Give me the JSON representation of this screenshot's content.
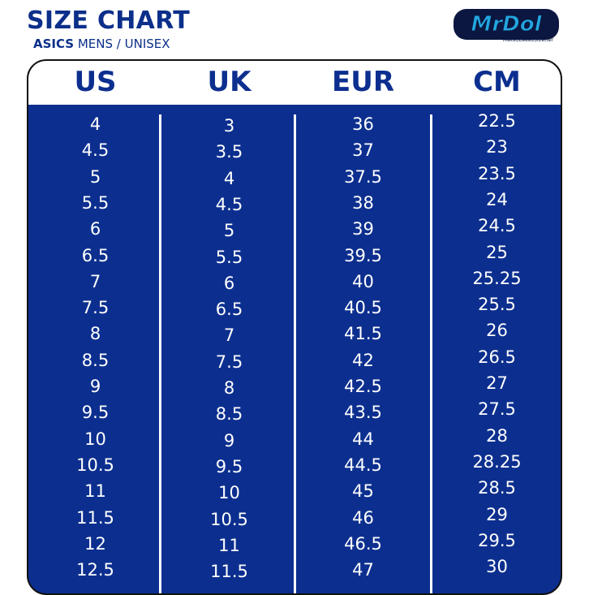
{
  "header": {
    "title": "SIZE CHART",
    "brand": "ASICS",
    "subtitle_rest": " MENS / UNISEX",
    "logo_text": "MrDol",
    "logo_tagline": "Makeubeeeoolbetter"
  },
  "colors": {
    "navy": "#0c2f8f",
    "title_blue": "#0b2f8a",
    "logo_cyan": "#22a7e0"
  },
  "columns": [
    {
      "heading": "US",
      "values": [
        "4",
        "4.5",
        "5",
        "5.5",
        "6",
        "6.5",
        "7",
        "7.5",
        "8",
        "8.5",
        "9",
        "9.5",
        "10",
        "10.5",
        "11",
        "11.5",
        "12",
        "12.5"
      ]
    },
    {
      "heading": "UK",
      "values": [
        "3",
        "3.5",
        "4",
        "4.5",
        "5",
        "5.5",
        "6",
        "6.5",
        "7",
        "7.5",
        "8",
        "8.5",
        "9",
        "9.5",
        "10",
        "10.5",
        "11",
        "11.5"
      ]
    },
    {
      "heading": "EUR",
      "values": [
        "36",
        "37",
        "37.5",
        "38",
        "39",
        "39.5",
        "40",
        "40.5",
        "41.5",
        "42",
        "42.5",
        "43.5",
        "44",
        "44.5",
        "45",
        "46",
        "46.5",
        "47"
      ]
    },
    {
      "heading": "CM",
      "values": [
        "22.5",
        "23",
        "23.5",
        "24",
        "24.5",
        "25",
        "25.25",
        "25.5",
        "26",
        "26.5",
        "27",
        "27.5",
        "28",
        "28.25",
        "28.5",
        "29",
        "29.5",
        "30"
      ]
    }
  ]
}
